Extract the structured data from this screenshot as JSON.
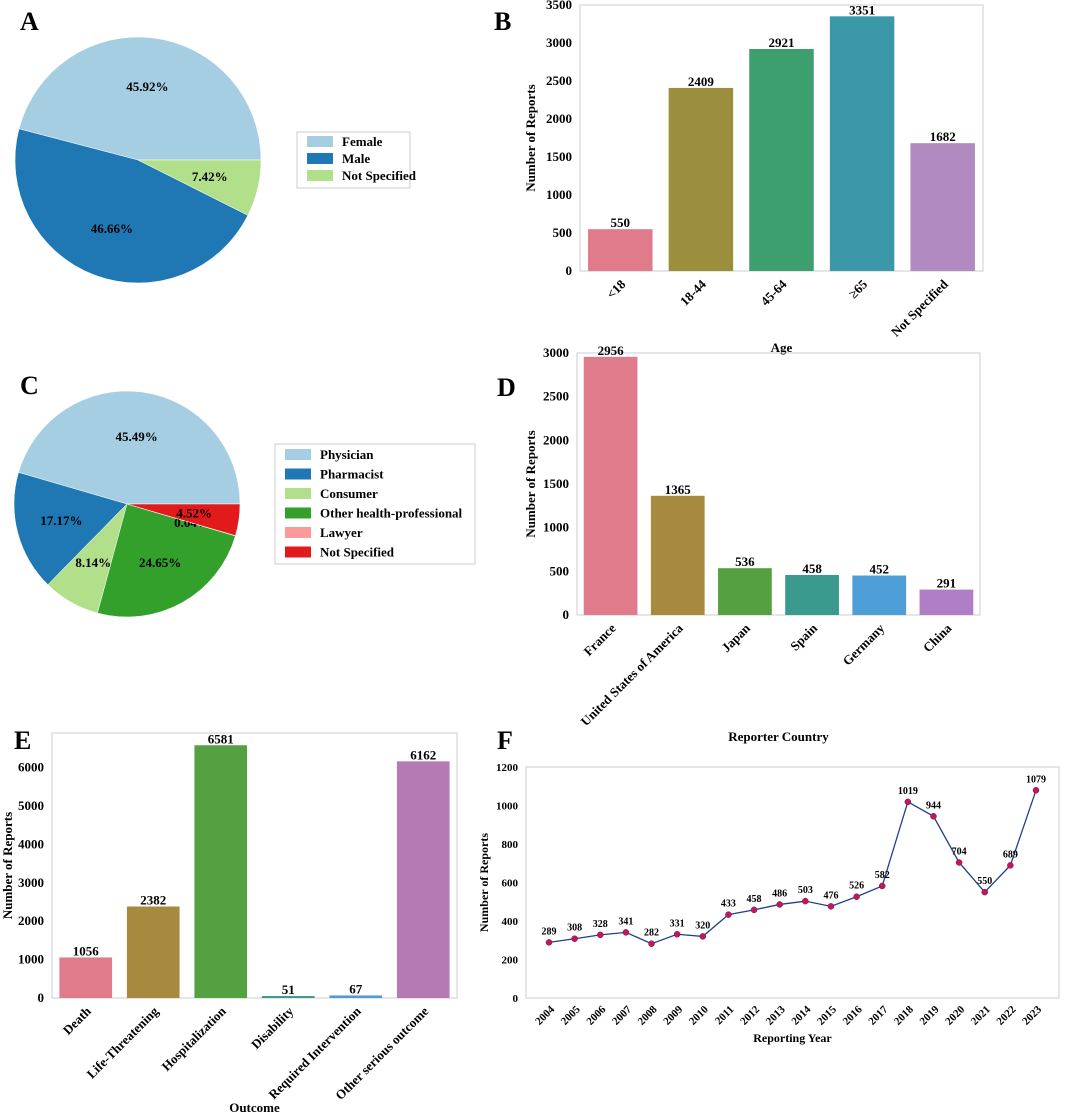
{
  "chart_data": [
    {
      "id": "A",
      "type": "pie",
      "panel_label": "A",
      "labels": [
        "Female",
        "Male",
        "Not Specified"
      ],
      "values": [
        45.92,
        46.66,
        7.42
      ],
      "value_labels": [
        "45.92%",
        "46.66%",
        "7.42%"
      ],
      "colors": [
        "#a6cee3",
        "#1f78b4",
        "#b2df8a"
      ],
      "legend": "right"
    },
    {
      "id": "B",
      "type": "bar",
      "panel_label": "B",
      "categories": [
        "<18",
        "18-44",
        "45-64",
        "≥65",
        "Not Specified"
      ],
      "values": [
        550,
        2409,
        2921,
        3351,
        1682
      ],
      "value_labels": [
        "550",
        "2409",
        "2921",
        "3351",
        "1682"
      ],
      "colors": [
        "#e07b8c",
        "#9b8f3e",
        "#3d9e6e",
        "#3a98a8",
        "#b08ac0"
      ],
      "xlabel": "Age",
      "ylabel": "Number of Reports",
      "ylim": [
        0,
        3500
      ],
      "yticks": [
        0,
        500,
        1000,
        1500,
        2000,
        2500,
        3000,
        3500
      ],
      "ytick_labels": [
        "0",
        "500",
        "1000",
        "1500",
        "2000",
        "2500",
        "3000",
        "3500"
      ]
    },
    {
      "id": "C",
      "type": "pie",
      "panel_label": "C",
      "labels": [
        "Physician",
        "Pharmacist",
        "Consumer",
        "Other health-professional",
        "Lawyer",
        "Not Specified"
      ],
      "values": [
        45.49,
        17.17,
        8.14,
        24.65,
        0.04,
        4.52
      ],
      "value_labels": [
        "45.49%",
        "17.17%",
        "8.14%",
        "24.65%",
        "0.04%",
        "4.52%"
      ],
      "colors": [
        "#a6cee3",
        "#1f78b4",
        "#b2df8a",
        "#33a02c",
        "#fb9a99",
        "#e31a1c"
      ],
      "legend": "right"
    },
    {
      "id": "D",
      "type": "bar",
      "panel_label": "D",
      "categories": [
        "France",
        "United States of America",
        "Japan",
        "Spain",
        "Germany",
        "China"
      ],
      "values": [
        2956,
        1365,
        536,
        458,
        452,
        291
      ],
      "value_labels": [
        "2956",
        "1365",
        "536",
        "458",
        "452",
        "291"
      ],
      "colors": [
        "#e07b8c",
        "#a88a3e",
        "#55a040",
        "#3a9a8e",
        "#4d9ed6",
        "#b07ec6"
      ],
      "xlabel": "Reporter Country",
      "ylabel": "Number of Reports",
      "ylim": [
        0,
        3000
      ],
      "yticks": [
        0,
        500,
        1000,
        1500,
        2000,
        2500,
        3000
      ],
      "ytick_labels": [
        "0",
        "500",
        "1000",
        "1500",
        "2000",
        "2500",
        "3000"
      ]
    },
    {
      "id": "E",
      "type": "bar",
      "panel_label": "E",
      "categories": [
        "Death",
        "Life-Threatening",
        "Hospitalization",
        "Disability",
        "Required Intervention",
        "Other serious outcome"
      ],
      "values": [
        1056,
        2382,
        6581,
        51,
        67,
        6162
      ],
      "value_labels": [
        "1056",
        "2382",
        "6581",
        "51",
        "67",
        "6162"
      ],
      "colors": [
        "#e07b8c",
        "#a88a3e",
        "#55a040",
        "#3a9a8e",
        "#4d9ed6",
        "#b57ab4"
      ],
      "xlabel": "Outcome",
      "ylabel": "Number of Reports",
      "ylim": [
        0,
        6900
      ],
      "yticks": [
        0,
        1000,
        2000,
        3000,
        4000,
        5000,
        6000
      ],
      "ytick_labels": [
        "0",
        "1000",
        "2000",
        "3000",
        "4000",
        "5000",
        "6000"
      ]
    },
    {
      "id": "F",
      "type": "line",
      "panel_label": "F",
      "x": [
        "2004",
        "2005",
        "2006",
        "2007",
        "2008",
        "2009",
        "2010",
        "2011",
        "2012",
        "2013",
        "2014",
        "2015",
        "2016",
        "2017",
        "2018",
        "2019",
        "2020",
        "2021",
        "2022",
        "2023"
      ],
      "values": [
        289,
        308,
        328,
        341,
        282,
        331,
        320,
        433,
        458,
        486,
        503,
        476,
        526,
        582,
        1019,
        944,
        704,
        550,
        689,
        1079
      ],
      "value_labels": [
        "289",
        "308",
        "328",
        "341",
        "282",
        "331",
        "320",
        "433",
        "458",
        "486",
        "503",
        "476",
        "526",
        "582",
        "1019",
        "944",
        "704",
        "550",
        "689",
        "1079"
      ],
      "line_color": "#1f3f8f",
      "marker_color": "#c2185b",
      "xlabel": "Reporting Year",
      "ylabel": "Number of Reports",
      "ylim": [
        0,
        1200
      ],
      "yticks": [
        0,
        200,
        400,
        600,
        800,
        1000,
        1200
      ],
      "ytick_labels": [
        "0",
        "200",
        "400",
        "600",
        "800",
        "1000",
        "1200"
      ]
    }
  ]
}
